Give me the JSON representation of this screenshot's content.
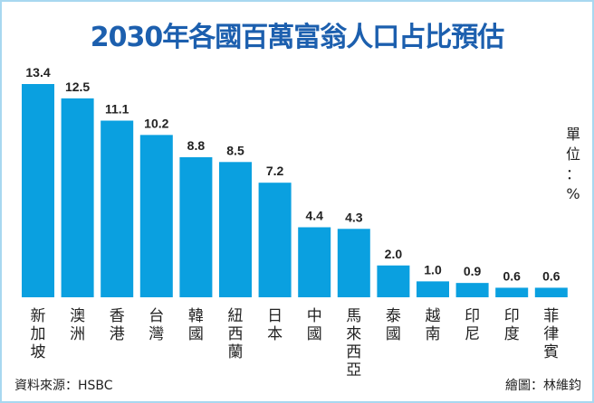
{
  "chart_data": {
    "type": "bar",
    "title": "2030年各國百萬富翁人口占比預估",
    "categories": [
      "新加坡",
      "澳洲",
      "香港",
      "台灣",
      "韓國",
      "紐西蘭",
      "日本",
      "中國",
      "馬來西亞",
      "泰國",
      "越南",
      "印尼",
      "印度",
      "菲律賓"
    ],
    "values": [
      13.4,
      12.5,
      11.1,
      10.2,
      8.8,
      8.5,
      7.2,
      4.4,
      4.3,
      2.0,
      1.0,
      0.9,
      0.6,
      0.6
    ],
    "value_labels": [
      "13.4",
      "12.5",
      "11.1",
      "10.2",
      "8.8",
      "8.5",
      "7.2",
      "4.4",
      "4.3",
      "2.0",
      "1.0",
      "0.9",
      "0.6",
      "0.6"
    ],
    "unit": "單位：%",
    "xlabel": "",
    "ylabel": "",
    "ylim": [
      0,
      13.4
    ],
    "bar_color": "#0aa0e0"
  },
  "footer": {
    "source": "資料來源：HSBC",
    "credit": "繪圖：林維鈞"
  }
}
